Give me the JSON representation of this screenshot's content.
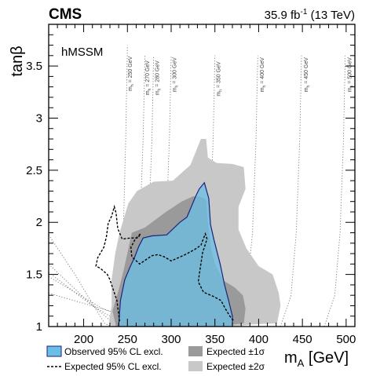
{
  "header": {
    "experiment": "CMS",
    "lumi": "35.9 fb",
    "lumi_sup": "-1",
    "energy": " (13 TeV)"
  },
  "model_label": "hMSSM",
  "chart_data": {
    "type": "area",
    "xlabel": "m",
    "xlabel_sub": "A",
    "xlabel_unit": " [GeV]",
    "ylabel": "tanβ",
    "xlim": [
      160,
      510
    ],
    "ylim": [
      1,
      3.9
    ],
    "xticks": [
      200,
      250,
      300,
      350,
      400,
      450,
      500
    ],
    "xtick_labels": [
      "200",
      "250",
      "300",
      "350",
      "400",
      "450",
      "500"
    ],
    "yticks": [
      1,
      1.5,
      2,
      2.5,
      3,
      3.5
    ],
    "ytick_labels": [
      "1",
      "1.5",
      "2",
      "2.5",
      "3",
      "3.5"
    ],
    "colors": {
      "band2": "#c8c8c8",
      "band1": "#9a9a9a",
      "observed_fill": "#6bbfe6",
      "observed_line": "#1a237e",
      "expected_line": "#000000",
      "contour": "#777777"
    },
    "series": [
      {
        "name": "Expected ±2σ",
        "points": [
          [
            229,
            1.05
          ],
          [
            232,
            1.2
          ],
          [
            232,
            1.45
          ],
          [
            236,
            1.7
          ],
          [
            241,
            1.9
          ],
          [
            251,
            2.18
          ],
          [
            261,
            2.3
          ],
          [
            280,
            2.39
          ],
          [
            302,
            2.4
          ],
          [
            322,
            2.55
          ],
          [
            334,
            2.8
          ],
          [
            340,
            2.8
          ],
          [
            342,
            2.62
          ],
          [
            352,
            2.57
          ],
          [
            370,
            2.56
          ],
          [
            383,
            2.53
          ],
          [
            385,
            2.32
          ],
          [
            377,
            2.15
          ],
          [
            377,
            1.93
          ],
          [
            386,
            1.75
          ],
          [
            400,
            1.58
          ],
          [
            416,
            1.5
          ],
          [
            423,
            1.32
          ],
          [
            425,
            1.2
          ],
          [
            421,
            1.03
          ],
          [
            393,
            1.02
          ],
          [
            373,
            1.0
          ],
          [
            333,
            1.0
          ],
          [
            300,
            1.0
          ],
          [
            260,
            1.0
          ],
          [
            242,
            1.0
          ],
          [
            232,
            1.0
          ]
        ]
      },
      {
        "name": "Expected ±1σ",
        "points": [
          [
            233,
            1.15
          ],
          [
            240,
            1.35
          ],
          [
            246,
            1.55
          ],
          [
            255,
            1.9
          ],
          [
            270,
            1.95
          ],
          [
            294,
            2.1
          ],
          [
            312,
            2.2
          ],
          [
            325,
            2.25
          ],
          [
            332,
            2.25
          ],
          [
            340,
            2.22
          ],
          [
            342,
            2.0
          ],
          [
            346,
            1.73
          ],
          [
            350,
            1.6
          ],
          [
            360,
            1.44
          ],
          [
            372,
            1.38
          ],
          [
            382,
            1.3
          ],
          [
            385,
            1.17
          ],
          [
            383,
            1.03
          ],
          [
            350,
            1.0
          ],
          [
            290,
            1.0
          ],
          [
            250,
            1.0
          ],
          [
            237,
            1.0
          ]
        ]
      },
      {
        "name": "Observed 95% CL excl.",
        "points": [
          [
            240,
            1.0
          ],
          [
            242,
            1.25
          ],
          [
            247,
            1.45
          ],
          [
            253,
            1.57
          ],
          [
            258,
            1.66
          ],
          [
            263,
            1.77
          ],
          [
            268,
            1.85
          ],
          [
            278,
            1.87
          ],
          [
            295,
            1.88
          ],
          [
            310,
            2.0
          ],
          [
            318,
            2.05
          ],
          [
            328,
            2.25
          ],
          [
            332,
            2.32
          ],
          [
            338,
            2.38
          ],
          [
            343,
            2.23
          ],
          [
            345,
            1.98
          ],
          [
            349,
            1.83
          ],
          [
            356,
            1.6
          ],
          [
            361,
            1.4
          ],
          [
            366,
            1.24
          ],
          [
            370,
            1.1
          ],
          [
            370,
            1.0
          ]
        ]
      },
      {
        "name": "Expected 95% CL excl.",
        "points": [
          [
            241,
            1.05
          ],
          [
            238,
            1.25
          ],
          [
            230,
            1.45
          ],
          [
            227,
            1.5
          ],
          [
            219,
            1.56
          ],
          [
            214,
            1.58
          ],
          [
            216,
            1.66
          ],
          [
            223,
            1.76
          ],
          [
            226,
            1.86
          ],
          [
            228,
            1.99
          ],
          [
            232,
            2.06
          ],
          [
            235,
            2.15
          ],
          [
            237,
            2.09
          ],
          [
            239,
            1.94
          ],
          [
            244,
            1.84
          ],
          [
            254,
            1.85
          ],
          [
            262,
            1.85
          ],
          [
            265,
            1.89
          ],
          [
            259,
            1.84
          ],
          [
            254,
            1.76
          ],
          [
            255,
            1.67
          ],
          [
            264,
            1.6
          ],
          [
            271,
            1.64
          ],
          [
            278,
            1.68
          ],
          [
            285,
            1.69
          ],
          [
            292,
            1.67
          ],
          [
            300,
            1.63
          ],
          [
            316,
            1.69
          ],
          [
            327,
            1.74
          ],
          [
            334,
            1.78
          ],
          [
            339,
            1.89
          ],
          [
            341,
            1.84
          ],
          [
            336,
            1.71
          ],
          [
            333,
            1.55
          ],
          [
            331,
            1.43
          ],
          [
            337,
            1.33
          ],
          [
            348,
            1.29
          ],
          [
            357,
            1.25
          ],
          [
            362,
            1.17
          ],
          [
            367,
            1.1
          ],
          [
            372,
            1.05
          ]
        ],
        "closed": false
      }
    ],
    "mh_contours": [
      {
        "label": "m = 250 GeV",
        "label_sub": "h",
        "label_x": 255,
        "label_y": 3.26,
        "points": [
          [
            160,
            1.88
          ],
          [
            190,
            1.5
          ],
          [
            210,
            1.22
          ],
          [
            224,
            1.03
          ],
          [
            232,
            1.0
          ],
          [
            240,
            1.15
          ],
          [
            245,
            1.8
          ],
          [
            248,
            2.8
          ],
          [
            250,
            3.7
          ]
        ]
      },
      {
        "label": "m = 270 GeV",
        "label_sub": "h",
        "label_x": 275,
        "label_y": 3.22,
        "points": [
          [
            160,
            1.6
          ],
          [
            200,
            1.28
          ],
          [
            230,
            1.06
          ],
          [
            246,
            1.0
          ],
          [
            258,
            1.2
          ],
          [
            264,
            1.9
          ],
          [
            268,
            2.8
          ],
          [
            270,
            3.6
          ]
        ]
      },
      {
        "label": "m = 280 GeV",
        "label_sub": "h",
        "label_x": 286,
        "label_y": 3.22,
        "points": [
          [
            160,
            1.52
          ],
          [
            210,
            1.2
          ],
          [
            240,
            1.05
          ],
          [
            255,
            1.0
          ],
          [
            267,
            1.2
          ],
          [
            274,
            1.9
          ],
          [
            278,
            2.8
          ],
          [
            280,
            3.6
          ]
        ]
      },
      {
        "label": "m = 300 GeV",
        "label_sub": "h",
        "label_x": 306,
        "label_y": 3.25,
        "points": [
          [
            160,
            1.48
          ],
          [
            220,
            1.18
          ],
          [
            255,
            1.05
          ],
          [
            275,
            1.0
          ],
          [
            287,
            1.2
          ],
          [
            294,
            1.9
          ],
          [
            298,
            2.8
          ],
          [
            300,
            3.6
          ]
        ]
      },
      {
        "label": "m = 350 GeV",
        "label_sub": "h",
        "label_x": 356,
        "label_y": 3.21,
        "points": [
          [
            160,
            1.32
          ],
          [
            250,
            1.1
          ],
          [
            300,
            1.03
          ],
          [
            325,
            1.0
          ],
          [
            337,
            1.2
          ],
          [
            344,
            1.9
          ],
          [
            348,
            2.8
          ],
          [
            350,
            3.6
          ]
        ]
      },
      {
        "label": "m = 400 GeV",
        "label_sub": "h",
        "label_x": 406,
        "label_y": 3.25,
        "points": [
          [
            272,
            1.0
          ],
          [
            370,
            1.0
          ],
          [
            385,
            1.2
          ],
          [
            393,
            1.9
          ],
          [
            397,
            2.8
          ],
          [
            399,
            3.6
          ]
        ]
      },
      {
        "label": "m = 450 GeV",
        "label_sub": "h",
        "label_x": 456,
        "label_y": 3.25,
        "points": [
          [
            425,
            1.0
          ],
          [
            437,
            1.3
          ],
          [
            443,
            1.9
          ],
          [
            447,
            2.8
          ],
          [
            449,
            3.6
          ]
        ]
      },
      {
        "label": "m = 500 GeV",
        "label_sub": "h",
        "label_x": 506,
        "label_y": 3.25,
        "points": [
          [
            475,
            1.0
          ],
          [
            487,
            1.3
          ],
          [
            493,
            1.9
          ],
          [
            497,
            2.8
          ],
          [
            499,
            3.6
          ]
        ]
      }
    ]
  },
  "legend": {
    "observed": "Observed 95% CL excl.",
    "expected": "Expected 95% CL excl.",
    "band1": "Expected ±1σ",
    "band2": "Expected ±2σ"
  }
}
